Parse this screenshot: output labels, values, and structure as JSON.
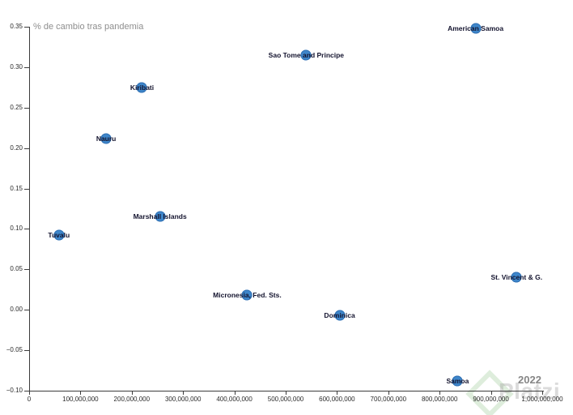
{
  "chart_data": {
    "type": "scatter",
    "title": "% de cambio tras pandemia",
    "xlabel": "",
    "ylabel": "% de cambio tras pandemia",
    "xlim": [
      0,
      1000000000
    ],
    "ylim": [
      -0.1,
      0.35
    ],
    "grid": false,
    "legend": false,
    "x_ticks": [
      0,
      100000000,
      200000000,
      300000000,
      400000000,
      500000000,
      600000000,
      700000000,
      800000000,
      900000000,
      1000000000
    ],
    "x_tick_labels": [
      "0",
      "100,000,000",
      "200,000,000",
      "300,000,000",
      "400,000,000",
      "500,000,000",
      "600,000,000",
      "700,000,000",
      "800,000,000",
      "900,000,000",
      "1,000,000,000"
    ],
    "y_ticks": [
      0.35,
      0.3,
      0.25,
      0.2,
      0.15,
      0.1,
      0.05,
      0.0,
      -0.05,
      -0.1
    ],
    "y_tick_labels": [
      "0.35",
      "0.30",
      "0.25",
      "0.20",
      "0.15",
      "0.10",
      "0.05",
      "0.00",
      "−0.05",
      "−0.10"
    ],
    "points": [
      {
        "label": "Tuvalu",
        "x": 58000000,
        "y": 0.092
      },
      {
        "label": "Nauru",
        "x": 150000000,
        "y": 0.212
      },
      {
        "label": "Kiribati",
        "x": 220000000,
        "y": 0.275
      },
      {
        "label": "Marshall Islands",
        "x": 255000000,
        "y": 0.115
      },
      {
        "label": "Micronesia, Fed. Sts.",
        "x": 425000000,
        "y": 0.018
      },
      {
        "label": "Sao Tome and Principe",
        "x": 540000000,
        "y": 0.315
      },
      {
        "label": "Dominica",
        "x": 605000000,
        "y": -0.007
      },
      {
        "label": "Samoa",
        "x": 835000000,
        "y": -0.088
      },
      {
        "label": "American Samoa",
        "x": 870000000,
        "y": 0.348
      },
      {
        "label": "St. Vincent & G.",
        "x": 950000000,
        "y": 0.04
      }
    ],
    "annotations": [
      {
        "text": "2022",
        "position": "bottom-right"
      }
    ],
    "colors": {
      "point_fill": "#3e86ca",
      "point_edge": "#2f6fb2",
      "label_text": "#13132e",
      "axis": "#3c3c3c",
      "tick_text": "#2b2b2b",
      "title_text": "#8e8e8e",
      "year_text": "#868686"
    }
  },
  "watermark": {
    "text": "Platzi",
    "logo": "platzi-shield-icon"
  }
}
